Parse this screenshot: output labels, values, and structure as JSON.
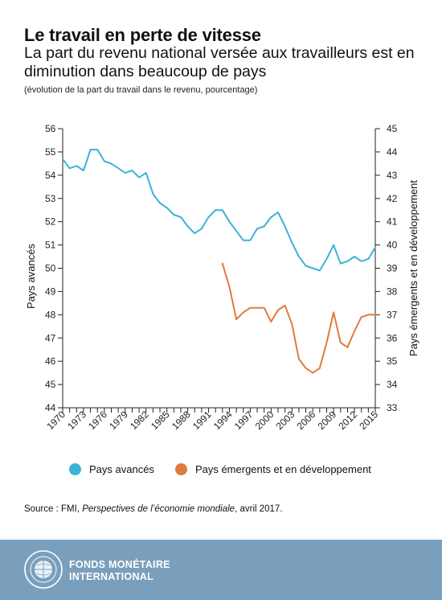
{
  "header": {
    "title": "Le travail en perte de vitesse",
    "subtitle": "La part du revenu national versée aux travailleurs est en diminution dans beaucoup de pays",
    "note": "(évolution de la part du travail dans le revenu, pourcentage)"
  },
  "chart_data": {
    "type": "line",
    "ylabel_left": "Pays avancés",
    "ylabel_right": "Pays émergents et en développement",
    "ylim_left": [
      44,
      56
    ],
    "ylim_right": [
      33,
      45
    ],
    "yticks_left": [
      "44",
      "45",
      "46",
      "47",
      "48",
      "49",
      "50",
      "51",
      "52",
      "53",
      "54",
      "55",
      "56"
    ],
    "yticks_right": [
      "33",
      "34",
      "35",
      "36",
      "37",
      "38",
      "39",
      "40",
      "41",
      "42",
      "43",
      "44",
      "45"
    ],
    "xticks": [
      "1970",
      "1973",
      "1976",
      "1979",
      "1982",
      "1985",
      "1988",
      "1991",
      "1994",
      "1997",
      "2000",
      "2003",
      "2006",
      "2009",
      "2012",
      "2015"
    ],
    "grid": false,
    "legend_position": "bottom",
    "series": [
      {
        "name": "Pays avancés",
        "axis": "left",
        "color": "#3bb3d6",
        "x": [
          1970,
          1971,
          1972,
          1973,
          1974,
          1975,
          1976,
          1977,
          1978,
          1979,
          1980,
          1981,
          1982,
          1983,
          1984,
          1985,
          1986,
          1987,
          1988,
          1989,
          1990,
          1991,
          1992,
          1993,
          1994,
          1995,
          1996,
          1997,
          1998,
          1999,
          2000,
          2001,
          2002,
          2003,
          2004,
          2005,
          2006,
          2007,
          2008,
          2009,
          2010,
          2011,
          2012,
          2013,
          2014,
          2015
        ],
        "values": [
          54.7,
          54.3,
          54.4,
          54.2,
          55.1,
          55.1,
          54.6,
          54.5,
          54.3,
          54.1,
          54.2,
          53.9,
          54.1,
          53.2,
          52.8,
          52.6,
          52.3,
          52.2,
          51.8,
          51.5,
          51.7,
          52.2,
          52.5,
          52.5,
          52.0,
          51.6,
          51.2,
          51.2,
          51.7,
          51.8,
          52.2,
          52.4,
          51.8,
          51.1,
          50.5,
          50.1,
          50.0,
          49.9,
          50.4,
          51.0,
          50.2,
          50.3,
          50.5,
          50.3,
          50.4,
          50.9
        ]
      },
      {
        "name": "Pays émergents et en développement",
        "axis": "right",
        "color": "#e07b39",
        "x": [
          1993,
          1994,
          1995,
          1996,
          1997,
          1998,
          1999,
          2000,
          2001,
          2002,
          2003,
          2004,
          2005,
          2006,
          2007,
          2008,
          2009,
          2010,
          2011,
          2012,
          2013,
          2014,
          2015
        ],
        "values": [
          39.2,
          38.2,
          36.8,
          37.1,
          37.3,
          37.3,
          37.3,
          36.7,
          37.2,
          37.4,
          36.6,
          35.1,
          34.7,
          34.5,
          34.7,
          35.8,
          37.1,
          35.8,
          35.6,
          36.3,
          36.9,
          37.0,
          37.0
        ]
      }
    ]
  },
  "legend": {
    "item1": "Pays avancés",
    "item2": "Pays émergents et en développement"
  },
  "source": {
    "prefix": "Source : FMI, ",
    "publication": "Perspectives de l’économie mondiale",
    "suffix": ", avril 2017."
  },
  "footer": {
    "org_line1": "FONDS MONÉTAIRE",
    "org_line2": "INTERNATIONAL"
  }
}
